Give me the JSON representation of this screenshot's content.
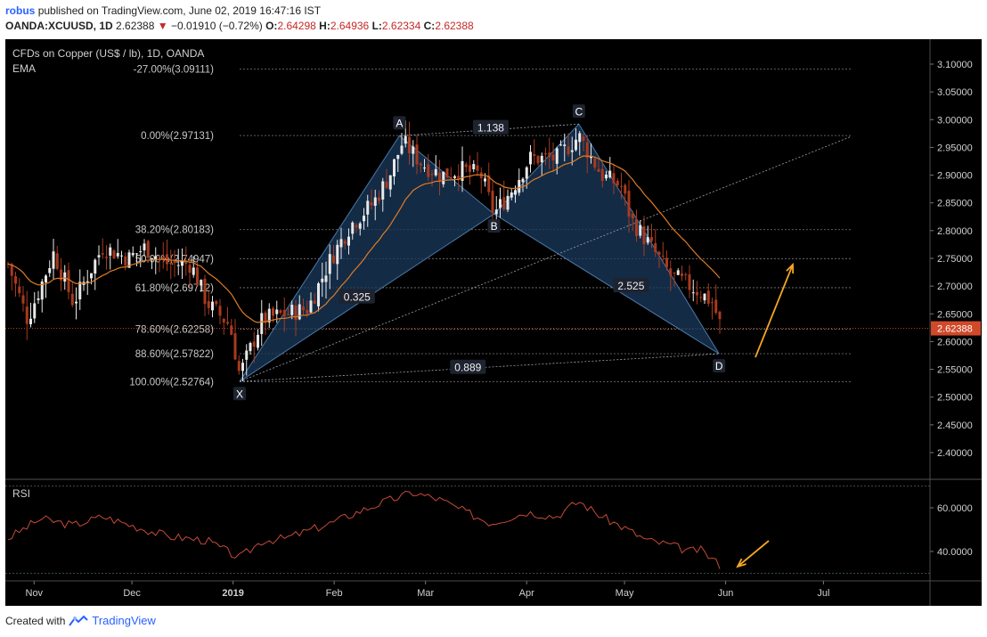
{
  "header": {
    "user": "robus",
    "published": "published on TradingView.com, June 02, 2019 16:47:16 IST",
    "symbol": "OANDA:XCUUSD, 1D",
    "last": "2.62388",
    "change": "−0.01910 (−0.72%)",
    "open_label": "O:",
    "open": "2.64298",
    "high_label": "H:",
    "high": "2.64936",
    "low_label": "L:",
    "low": "2.62334",
    "close_label": "C:",
    "close": "2.62388"
  },
  "footer": {
    "created_with": "Created with",
    "brand": "TradingView"
  },
  "colors": {
    "background": "#000000",
    "bull": "#e8e8e8",
    "bear": "#a93a1e",
    "ema": "#e07b24",
    "rsi": "#c84a38",
    "pattern_fill": "#1a3a5c",
    "pattern_edge": "#4a78a8",
    "arrow": "#f5a623",
    "price_tag": "#d04a2a"
  },
  "chart_data": [
    {
      "type": "candlestick",
      "title": "CFDs on Copper (US$ / lb), 1D, OANDA",
      "indicator": "EMA",
      "ylim": [
        2.35,
        3.12
      ],
      "y_ticks": [
        "3.10000",
        "3.05000",
        "3.00000",
        "2.95000",
        "2.90000",
        "2.85000",
        "2.80000",
        "2.75000",
        "2.70000",
        "2.65000",
        "2.60000",
        "2.55000",
        "2.50000",
        "2.45000",
        "2.40000"
      ],
      "x_ticks": [
        "Nov",
        "Dec",
        "2019",
        "Feb",
        "Mar",
        "Apr",
        "May",
        "Jun",
        "Jul"
      ],
      "last_price": "2.62388",
      "fib_levels": [
        {
          "label": "-27.00%(3.09111)",
          "value": 3.09111
        },
        {
          "label": "0.00%(2.97131)",
          "value": 2.97131
        },
        {
          "label": "38.20%(2.80183)",
          "value": 2.80183
        },
        {
          "label": "50.00%(2.74947)",
          "value": 2.74947
        },
        {
          "label": "61.80%(2.69712)",
          "value": 2.69712
        },
        {
          "label": "78.60%(2.62258)",
          "value": 2.62258
        },
        {
          "label": "88.60%(2.57822)",
          "value": 2.57822
        },
        {
          "label": "100.00%(2.52764)",
          "value": 2.52764
        }
      ],
      "pattern_points": [
        {
          "label": "X",
          "date": "2019-01-03",
          "price": 2.528
        },
        {
          "label": "A",
          "date": "2019-02-21",
          "price": 2.971
        },
        {
          "label": "B",
          "date": "2019-03-22",
          "price": 2.83
        },
        {
          "label": "C",
          "date": "2019-04-17",
          "price": 2.992
        },
        {
          "label": "D",
          "date": "2019-05-30",
          "price": 2.578
        }
      ],
      "ratios": [
        {
          "label": "1.138",
          "date": "2019-03-21",
          "price": 2.985
        },
        {
          "label": "0.325",
          "date": "2019-02-08",
          "price": 2.68
        },
        {
          "label": "2.525",
          "date": "2019-05-03",
          "price": 2.7
        },
        {
          "label": "0.889",
          "date": "2019-03-14",
          "price": 2.553
        }
      ],
      "close_path": [
        [
          "2018-10-24",
          2.74
        ],
        [
          "2018-10-30",
          2.64
        ],
        [
          "2018-11-07",
          2.76
        ],
        [
          "2018-11-13",
          2.67
        ],
        [
          "2018-11-22",
          2.77
        ],
        [
          "2018-11-30",
          2.75
        ],
        [
          "2018-12-05",
          2.77
        ],
        [
          "2018-12-12",
          2.74
        ],
        [
          "2018-12-19",
          2.74
        ],
        [
          "2018-12-24",
          2.67
        ],
        [
          "2018-12-31",
          2.63
        ],
        [
          "2019-01-03",
          2.54
        ],
        [
          "2019-01-10",
          2.64
        ],
        [
          "2019-01-17",
          2.65
        ],
        [
          "2019-01-24",
          2.66
        ],
        [
          "2019-01-31",
          2.75
        ],
        [
          "2019-02-06",
          2.81
        ],
        [
          "2019-02-13",
          2.85
        ],
        [
          "2019-02-18",
          2.9
        ],
        [
          "2019-02-22",
          2.96
        ],
        [
          "2019-02-28",
          2.92
        ],
        [
          "2019-03-06",
          2.9
        ],
        [
          "2019-03-12",
          2.91
        ],
        [
          "2019-03-18",
          2.9
        ],
        [
          "2019-03-22",
          2.83
        ],
        [
          "2019-03-27",
          2.87
        ],
        [
          "2019-04-02",
          2.93
        ],
        [
          "2019-04-10",
          2.93
        ],
        [
          "2019-04-17",
          2.97
        ],
        [
          "2019-04-24",
          2.9
        ],
        [
          "2019-04-30",
          2.88
        ],
        [
          "2019-05-03",
          2.82
        ],
        [
          "2019-05-08",
          2.78
        ],
        [
          "2019-05-15",
          2.72
        ],
        [
          "2019-05-21",
          2.7
        ],
        [
          "2019-05-24",
          2.69
        ],
        [
          "2019-05-28",
          2.67
        ],
        [
          "2019-05-31",
          2.62
        ]
      ]
    },
    {
      "type": "line",
      "title": "RSI",
      "ylim": [
        30,
        76
      ],
      "y_ticks": [
        "60.0000",
        "40.0000"
      ],
      "series": [
        {
          "name": "",
          "points": [
            [
              "2018-10-24",
              46
            ],
            [
              "2018-11-03",
              55
            ],
            [
              "2018-11-13",
              52
            ],
            [
              "2018-11-22",
              56
            ],
            [
              "2018-12-03",
              51
            ],
            [
              "2018-12-12",
              47
            ],
            [
              "2018-12-24",
              45
            ],
            [
              "2019-01-03",
              37
            ],
            [
              "2019-01-10",
              45
            ],
            [
              "2019-01-17",
              46
            ],
            [
              "2019-01-31",
              53
            ],
            [
              "2019-02-08",
              58
            ],
            [
              "2019-02-15",
              62
            ],
            [
              "2019-02-25",
              67
            ],
            [
              "2019-03-05",
              64
            ],
            [
              "2019-03-12",
              59
            ],
            [
              "2019-03-21",
              53
            ],
            [
              "2019-04-01",
              58
            ],
            [
              "2019-04-10",
              56
            ],
            [
              "2019-04-17",
              63
            ],
            [
              "2019-04-24",
              56
            ],
            [
              "2019-05-02",
              50
            ],
            [
              "2019-05-08",
              45
            ],
            [
              "2019-05-15",
              43
            ],
            [
              "2019-05-21",
              40
            ],
            [
              "2019-05-24",
              41
            ],
            [
              "2019-05-31",
              33
            ]
          ]
        }
      ]
    }
  ]
}
